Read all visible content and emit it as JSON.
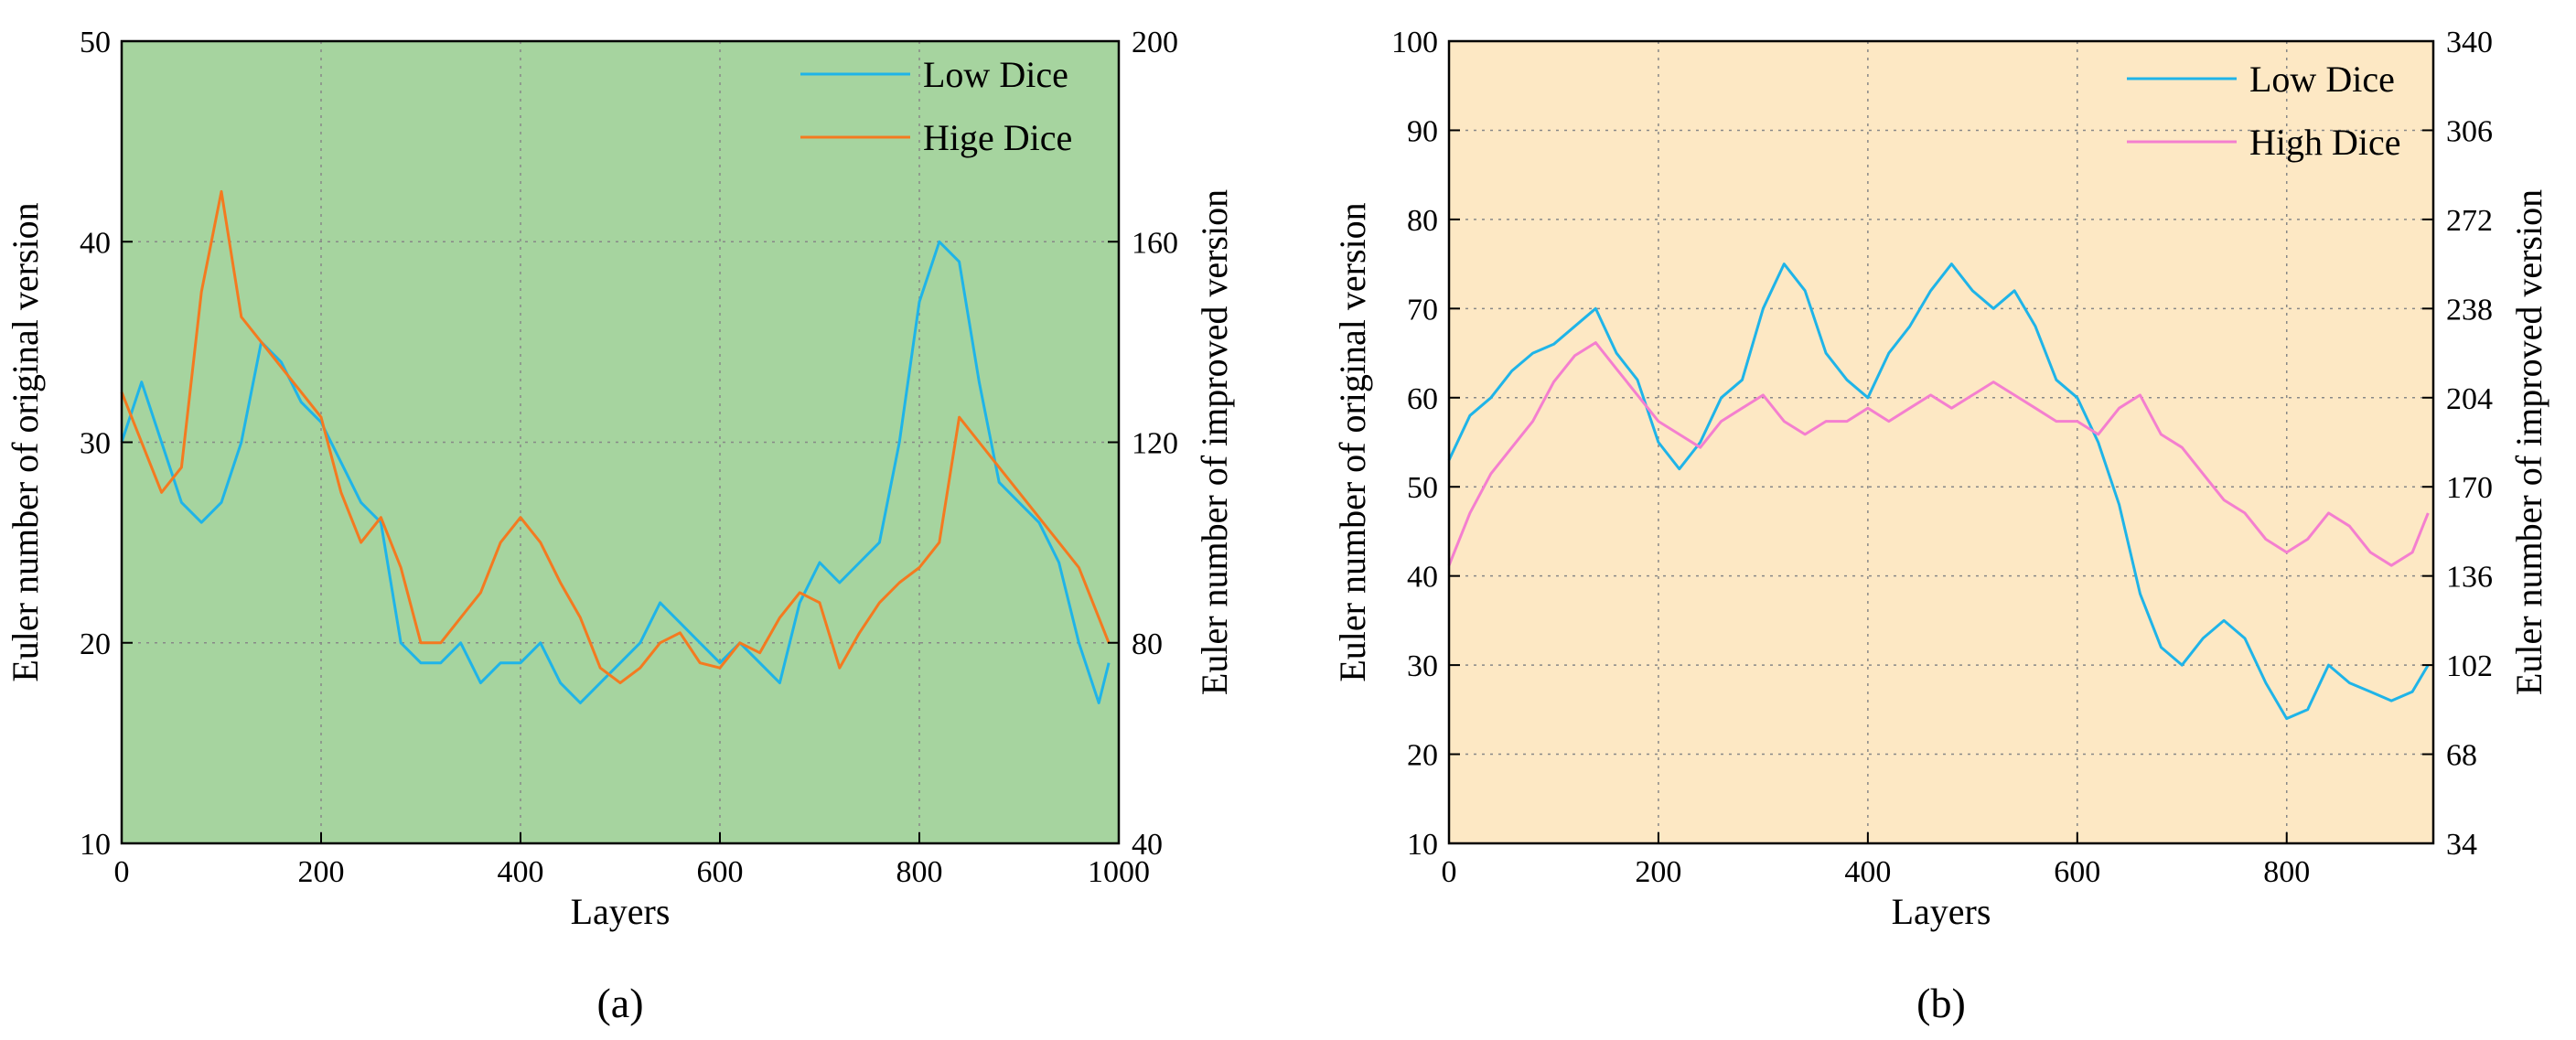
{
  "chart_data": [
    {
      "id": "a",
      "type": "line",
      "panel_label": "(a)",
      "background_color": "#a6d49f",
      "xlabel": "Layers",
      "ylabel_left": "Euler number of original version",
      "ylabel_right": "Euler number of improved version",
      "xlim": [
        0,
        1000
      ],
      "ylim_left": [
        10,
        50
      ],
      "ylim_right": [
        40,
        200
      ],
      "x_ticks": [
        0,
        200,
        400,
        600,
        800,
        1000
      ],
      "y_ticks_left": [
        10,
        20,
        30,
        40,
        50
      ],
      "y_ticks_right": [
        40,
        80,
        120,
        160,
        200
      ],
      "grid": true,
      "legend_position": "top-right",
      "series": [
        {
          "name": "Low Dice",
          "axis": "left",
          "color": "#1fb4e8",
          "x": [
            0,
            20,
            40,
            60,
            80,
            100,
            120,
            140,
            160,
            180,
            200,
            220,
            240,
            260,
            280,
            300,
            320,
            340,
            360,
            380,
            400,
            420,
            440,
            460,
            480,
            500,
            520,
            540,
            560,
            580,
            600,
            620,
            640,
            660,
            680,
            700,
            720,
            740,
            760,
            780,
            800,
            820,
            840,
            860,
            880,
            900,
            920,
            940,
            960,
            980,
            990
          ],
          "y": [
            30,
            33,
            30,
            27,
            26,
            27,
            30,
            35,
            34,
            32,
            31,
            29,
            27,
            26,
            20,
            19,
            19,
            20,
            18,
            19,
            19,
            20,
            18,
            17,
            18,
            19,
            20,
            22,
            21,
            20,
            19,
            20,
            19,
            18,
            22,
            24,
            23,
            24,
            25,
            30,
            37,
            40,
            39,
            33,
            28,
            27,
            26,
            24,
            20,
            17,
            19
          ]
        },
        {
          "name": "Hige Dice",
          "axis": "right",
          "color": "#f47a20",
          "x": [
            0,
            20,
            40,
            60,
            80,
            100,
            120,
            140,
            160,
            180,
            200,
            220,
            240,
            260,
            280,
            300,
            320,
            340,
            360,
            380,
            400,
            420,
            440,
            460,
            480,
            500,
            520,
            540,
            560,
            580,
            600,
            620,
            640,
            660,
            680,
            700,
            720,
            740,
            760,
            780,
            800,
            820,
            840,
            860,
            880,
            900,
            920,
            940,
            960,
            980,
            990
          ],
          "y": [
            130,
            120,
            110,
            115,
            150,
            170,
            145,
            140,
            135,
            130,
            125,
            110,
            100,
            105,
            95,
            80,
            80,
            85,
            90,
            100,
            105,
            100,
            92,
            85,
            75,
            72,
            75,
            80,
            82,
            76,
            75,
            80,
            78,
            85,
            90,
            88,
            75,
            82,
            88,
            92,
            95,
            100,
            125,
            120,
            115,
            110,
            105,
            100,
            95,
            85,
            80
          ]
        }
      ]
    },
    {
      "id": "b",
      "type": "line",
      "panel_label": "(b)",
      "background_color": "#fde8c4",
      "xlabel": "Layers",
      "ylabel_left": "Euler number of original version",
      "ylabel_right": "Euler number of improved version",
      "xlim": [
        0,
        940
      ],
      "ylim_left": [
        10,
        100
      ],
      "ylim_right": [
        34,
        340
      ],
      "x_ticks": [
        0,
        200,
        400,
        600,
        800
      ],
      "y_ticks_left": [
        10,
        20,
        30,
        40,
        50,
        60,
        70,
        80,
        90,
        100
      ],
      "y_ticks_right": [
        34,
        68,
        102,
        136,
        170,
        204,
        238,
        272,
        306,
        340
      ],
      "grid": true,
      "legend_position": "top-right",
      "series": [
        {
          "name": "Low Dice",
          "axis": "left",
          "color": "#1fb4e8",
          "x": [
            0,
            20,
            40,
            60,
            80,
            100,
            120,
            140,
            160,
            180,
            200,
            220,
            240,
            260,
            280,
            300,
            320,
            340,
            360,
            380,
            400,
            420,
            440,
            460,
            480,
            500,
            520,
            540,
            560,
            580,
            600,
            620,
            640,
            660,
            680,
            700,
            720,
            740,
            760,
            780,
            800,
            820,
            840,
            860,
            880,
            900,
            920,
            935
          ],
          "y": [
            53,
            58,
            60,
            63,
            65,
            66,
            68,
            70,
            65,
            62,
            55,
            52,
            55,
            60,
            62,
            70,
            75,
            72,
            65,
            62,
            60,
            65,
            68,
            72,
            75,
            72,
            70,
            72,
            68,
            62,
            60,
            55,
            48,
            38,
            32,
            30,
            33,
            35,
            33,
            28,
            24,
            25,
            30,
            28,
            27,
            26,
            27,
            30
          ]
        },
        {
          "name": "High Dice",
          "axis": "right",
          "color": "#f47fcf",
          "x": [
            0,
            20,
            40,
            60,
            80,
            100,
            120,
            140,
            160,
            180,
            200,
            220,
            240,
            260,
            280,
            300,
            320,
            340,
            360,
            380,
            400,
            420,
            440,
            460,
            480,
            500,
            520,
            540,
            560,
            580,
            600,
            620,
            640,
            660,
            680,
            700,
            720,
            740,
            760,
            780,
            800,
            820,
            840,
            860,
            880,
            900,
            920,
            935
          ],
          "y": [
            140,
            160,
            175,
            185,
            195,
            210,
            220,
            225,
            215,
            205,
            195,
            190,
            185,
            195,
            200,
            205,
            195,
            190,
            195,
            195,
            200,
            195,
            200,
            205,
            200,
            205,
            210,
            205,
            200,
            195,
            195,
            190,
            200,
            205,
            190,
            185,
            175,
            165,
            160,
            150,
            145,
            150,
            160,
            155,
            145,
            140,
            145,
            160
          ]
        }
      ]
    }
  ]
}
